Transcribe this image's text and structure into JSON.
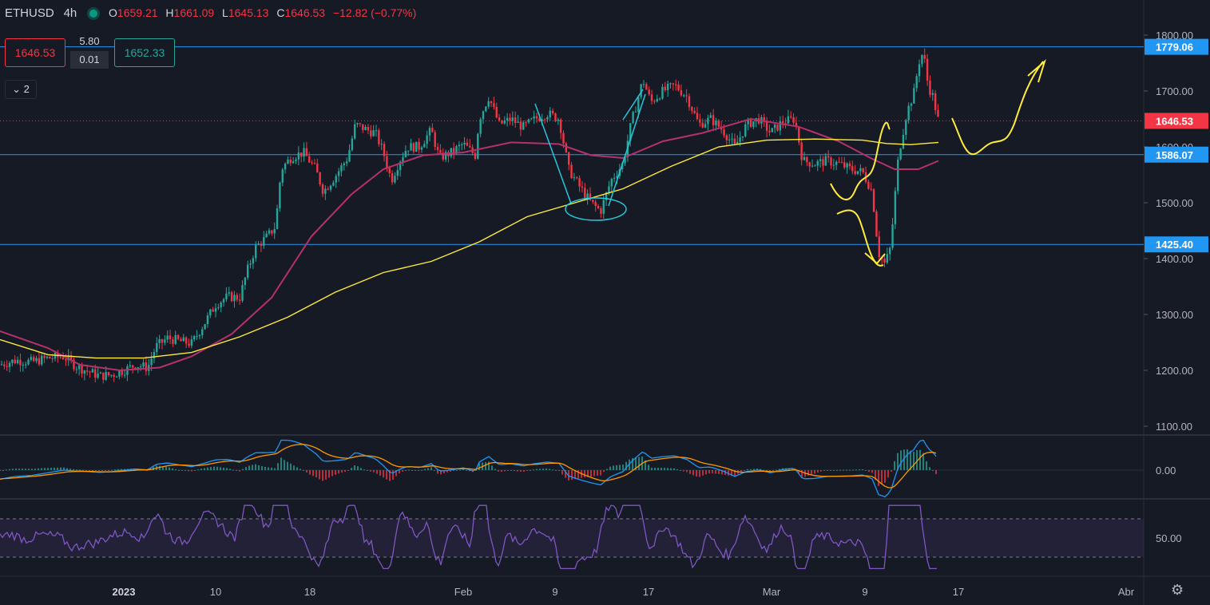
{
  "header": {
    "symbol": "ETHUSD",
    "interval": "4h",
    "open_label": "O",
    "open": "1659.21",
    "high_label": "H",
    "high": "1661.09",
    "low_label": "L",
    "low": "1645.13",
    "close_label": "C",
    "close": "1646.53",
    "change": "−12.82 (−0.77%)"
  },
  "trade_panel": {
    "sell_price": "1646.53",
    "spread_top": "5.80",
    "spread_bottom": "0.01",
    "buy_price": "1652.33",
    "indicator_toggle": "2"
  },
  "colors": {
    "background": "#161a25",
    "up": "#26a69a",
    "down": "#f23645",
    "hline": "#2196f3",
    "ma_long": "#ffeb3b",
    "ma_short": "#b5316b",
    "annotation": "#ffeb3b",
    "annotation_blue": "#26c6da",
    "rsi": "#7e57c2"
  },
  "icons": {
    "settings": "gear-icon"
  },
  "chart_data": [
    {
      "type": "candlestick",
      "symbol": "ETHUSD",
      "interval": "4h",
      "ylim": [
        1060,
        1870
      ],
      "yticks": [
        1100,
        1200,
        1300,
        1400,
        1500,
        1600,
        1700,
        1800
      ],
      "ytick_labels": [
        "1100.00",
        "1200.00",
        "1300.00",
        "1400.00",
        "1500.00",
        "1600.00",
        "1700.00",
        "1800.00"
      ],
      "xticks": [
        "2023",
        "10",
        "18",
        "Feb",
        "9",
        "17",
        "Mar",
        "9",
        "17",
        "Abr"
      ],
      "horizontal_lines": [
        {
          "value": 1779.06,
          "label": "1779.06"
        },
        {
          "value": 1586.07,
          "label": "1586.07"
        },
        {
          "value": 1425.4,
          "label": "1425.40"
        }
      ],
      "last_price": {
        "value": 1646.53,
        "label": "1646.53"
      },
      "close_path": [
        [
          0,
          1210
        ],
        [
          20,
          1218
        ],
        [
          40,
          1215
        ],
        [
          60,
          1222
        ],
        [
          80,
          1225
        ],
        [
          95,
          1208
        ],
        [
          110,
          1198
        ],
        [
          125,
          1190
        ],
        [
          140,
          1192
        ],
        [
          155,
          1200
        ],
        [
          170,
          1210
        ],
        [
          185,
          1205
        ],
        [
          195,
          1242
        ],
        [
          210,
          1258
        ],
        [
          225,
          1252
        ],
        [
          240,
          1248
        ],
        [
          255,
          1282
        ],
        [
          270,
          1318
        ],
        [
          285,
          1332
        ],
        [
          300,
          1330
        ],
        [
          310,
          1380
        ],
        [
          320,
          1420
        ],
        [
          335,
          1440
        ],
        [
          345,
          1458
        ],
        [
          352,
          1560
        ],
        [
          365,
          1582
        ],
        [
          380,
          1590
        ],
        [
          395,
          1560
        ],
        [
          405,
          1520
        ],
        [
          420,
          1548
        ],
        [
          435,
          1580
        ],
        [
          445,
          1640
        ],
        [
          460,
          1630
        ],
        [
          470,
          1625
        ],
        [
          480,
          1590
        ],
        [
          490,
          1540
        ],
        [
          500,
          1575
        ],
        [
          510,
          1600
        ],
        [
          525,
          1600
        ],
        [
          540,
          1630
        ],
        [
          550,
          1580
        ],
        [
          565,
          1590
        ],
        [
          580,
          1605
        ],
        [
          595,
          1585
        ],
        [
          600,
          1650
        ],
        [
          612,
          1690
        ],
        [
          625,
          1640
        ],
        [
          640,
          1650
        ],
        [
          655,
          1635
        ],
        [
          670,
          1650
        ],
        [
          685,
          1660
        ],
        [
          700,
          1650
        ],
        [
          712,
          1560
        ],
        [
          725,
          1530
        ],
        [
          740,
          1500
        ],
        [
          752,
          1485
        ],
        [
          765,
          1540
        ],
        [
          780,
          1570
        ],
        [
          790,
          1640
        ],
        [
          805,
          1720
        ],
        [
          815,
          1680
        ],
        [
          830,
          1700
        ],
        [
          845,
          1710
        ],
        [
          860,
          1690
        ],
        [
          875,
          1640
        ],
        [
          890,
          1650
        ],
        [
          905,
          1630
        ],
        [
          920,
          1600
        ],
        [
          935,
          1640
        ],
        [
          950,
          1650
        ],
        [
          965,
          1625
        ],
        [
          980,
          1645
        ],
        [
          995,
          1650
        ],
        [
          1005,
          1575
        ],
        [
          1020,
          1570
        ],
        [
          1035,
          1575
        ],
        [
          1050,
          1570
        ],
        [
          1065,
          1560
        ],
        [
          1080,
          1555
        ],
        [
          1092,
          1520
        ],
        [
          1100,
          1410
        ],
        [
          1108,
          1390
        ],
        [
          1115,
          1420
        ],
        [
          1125,
          1585
        ],
        [
          1135,
          1660
        ],
        [
          1145,
          1700
        ],
        [
          1150,
          1750
        ],
        [
          1156,
          1770
        ],
        [
          1162,
          1710
        ],
        [
          1168,
          1690
        ],
        [
          1175,
          1646
        ]
      ],
      "ma_long_path": [
        [
          0,
          1255
        ],
        [
          60,
          1228
        ],
        [
          120,
          1222
        ],
        [
          180,
          1222
        ],
        [
          240,
          1232
        ],
        [
          300,
          1260
        ],
        [
          360,
          1295
        ],
        [
          420,
          1340
        ],
        [
          480,
          1375
        ],
        [
          540,
          1395
        ],
        [
          600,
          1430
        ],
        [
          660,
          1475
        ],
        [
          720,
          1500
        ],
        [
          780,
          1525
        ],
        [
          840,
          1565
        ],
        [
          900,
          1600
        ],
        [
          960,
          1612
        ],
        [
          1020,
          1614
        ],
        [
          1080,
          1612
        ],
        [
          1110,
          1606
        ],
        [
          1140,
          1604
        ],
        [
          1175,
          1608
        ]
      ],
      "ma_short_path": [
        [
          0,
          1270
        ],
        [
          60,
          1240
        ],
        [
          100,
          1210
        ],
        [
          150,
          1200
        ],
        [
          200,
          1205
        ],
        [
          240,
          1225
        ],
        [
          290,
          1265
        ],
        [
          340,
          1330
        ],
        [
          390,
          1440
        ],
        [
          440,
          1515
        ],
        [
          480,
          1560
        ],
        [
          530,
          1585
        ],
        [
          580,
          1590
        ],
        [
          640,
          1608
        ],
        [
          700,
          1605
        ],
        [
          740,
          1585
        ],
        [
          780,
          1580
        ],
        [
          830,
          1610
        ],
        [
          880,
          1625
        ],
        [
          940,
          1650
        ],
        [
          1000,
          1636
        ],
        [
          1050,
          1610
        ],
        [
          1090,
          1580
        ],
        [
          1120,
          1560
        ],
        [
          1150,
          1560
        ],
        [
          1175,
          1575
        ]
      ]
    },
    {
      "type": "line",
      "name": "macd",
      "ylim": [
        -55,
        55
      ],
      "yticks": [
        0
      ],
      "ytick_labels": [
        "0.00"
      ]
    },
    {
      "type": "line",
      "name": "rsi",
      "ylim": [
        10,
        90
      ],
      "yticks": [
        50
      ],
      "ytick_labels": [
        "50.00"
      ],
      "bands": [
        30,
        70
      ]
    }
  ]
}
